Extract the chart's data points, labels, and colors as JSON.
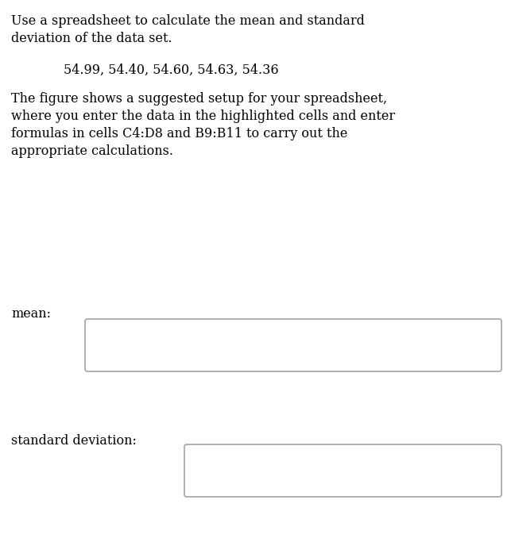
{
  "background_color": "#ffffff",
  "text_color": "#000000",
  "title_lines": [
    "Use a spreadsheet to calculate the mean and standard",
    "deviation of the data set."
  ],
  "data_line": "54.99, 54.40, 54.60, 54.63, 54.36",
  "body_lines": [
    "The figure shows a suggested setup for your spreadsheet,",
    "where you enter the data in the highlighted cells and enter",
    "formulas in cells C4:D8 and B9:B11 to carry out the",
    "appropriate calculations."
  ],
  "label_mean": "mean:",
  "label_std": "standard deviation:",
  "font_size": 11.5,
  "box_border_color": "#aaaaaa",
  "box_fill_color": "#ffffff",
  "fig_width": 6.48,
  "fig_height": 6.88,
  "dpi": 100
}
